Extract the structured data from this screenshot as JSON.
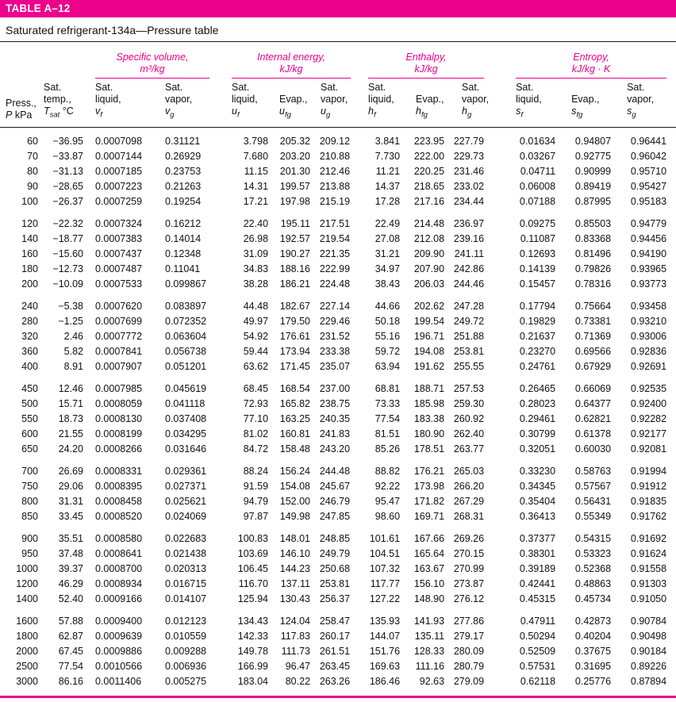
{
  "header": {
    "table_number": "TABLE A–12",
    "subtitle": "Saturated refrigerant-134a—Pressure table"
  },
  "colors": {
    "accent_magenta": "#ec008c",
    "rule_black": "#1a1a1a"
  },
  "table": {
    "column_groups": [
      {
        "id": "specific-volume",
        "label": "Specific volume,",
        "units": "m³/kg",
        "span": 2
      },
      {
        "id": "internal-energy",
        "label": "Internal energy,",
        "units": "kJ/kg",
        "span": 3
      },
      {
        "id": "enthalpy",
        "label": "Enthalpy,",
        "units": "kJ/kg",
        "span": 3
      },
      {
        "id": "entropy",
        "label": "Entropy,",
        "units": "kJ/kg · K",
        "span": 3
      }
    ],
    "columns": [
      {
        "id": "pressure",
        "lines": [
          "Press.,"
        ],
        "symbol": "P",
        "sub": "",
        "suffix": " kPa"
      },
      {
        "id": "sat-temp",
        "lines": [
          "Sat.",
          "temp.,"
        ],
        "symbol": "T",
        "sub": "sat",
        "suffix": " °C"
      },
      {
        "id": "vf",
        "lines": [
          "Sat.",
          "liquid,"
        ],
        "symbol": "v",
        "sub": "f",
        "suffix": ""
      },
      {
        "id": "vg",
        "lines": [
          "Sat.",
          "vapor,"
        ],
        "symbol": "v",
        "sub": "g",
        "suffix": ""
      },
      {
        "id": "uf",
        "lines": [
          "Sat.",
          "liquid,"
        ],
        "symbol": "u",
        "sub": "f",
        "suffix": ""
      },
      {
        "id": "ufg",
        "lines": [
          "Evap.,"
        ],
        "symbol": "u",
        "sub": "fg",
        "suffix": ""
      },
      {
        "id": "ug",
        "lines": [
          "Sat.",
          "vapor,"
        ],
        "symbol": "u",
        "sub": "g",
        "suffix": ""
      },
      {
        "id": "hf",
        "lines": [
          "Sat.",
          "liquid,"
        ],
        "symbol": "h",
        "sub": "f",
        "suffix": ""
      },
      {
        "id": "hfg",
        "lines": [
          "Evap.,"
        ],
        "symbol": "h",
        "sub": "fg",
        "suffix": ""
      },
      {
        "id": "hg",
        "lines": [
          "Sat.",
          "vapor,"
        ],
        "symbol": "h",
        "sub": "g",
        "suffix": ""
      },
      {
        "id": "sf",
        "lines": [
          "Sat.",
          "liquid,"
        ],
        "symbol": "s",
        "sub": "f",
        "suffix": ""
      },
      {
        "id": "sfg",
        "lines": [
          "Evap.,"
        ],
        "symbol": "s",
        "sub": "fg",
        "suffix": ""
      },
      {
        "id": "sg",
        "lines": [
          "Sat.",
          "vapor,"
        ],
        "symbol": "s",
        "sub": "g",
        "suffix": ""
      }
    ],
    "row_groups": [
      [
        [
          "60",
          "−36.95",
          "0.0007098",
          "0.31121",
          "3.798",
          "205.32",
          "209.12",
          "3.841",
          "223.95",
          "227.79",
          "0.01634",
          "0.94807",
          "0.96441"
        ],
        [
          "70",
          "−33.87",
          "0.0007144",
          "0.26929",
          "7.680",
          "203.20",
          "210.88",
          "7.730",
          "222.00",
          "229.73",
          "0.03267",
          "0.92775",
          "0.96042"
        ],
        [
          "80",
          "−31.13",
          "0.0007185",
          "0.23753",
          "11.15",
          "201.30",
          "212.46",
          "11.21",
          "220.25",
          "231.46",
          "0.04711",
          "0.90999",
          "0.95710"
        ],
        [
          "90",
          "−28.65",
          "0.0007223",
          "0.21263",
          "14.31",
          "199.57",
          "213.88",
          "14.37",
          "218.65",
          "233.02",
          "0.06008",
          "0.89419",
          "0.95427"
        ],
        [
          "100",
          "−26.37",
          "0.0007259",
          "0.19254",
          "17.21",
          "197.98",
          "215.19",
          "17.28",
          "217.16",
          "234.44",
          "0.07188",
          "0.87995",
          "0.95183"
        ]
      ],
      [
        [
          "120",
          "−22.32",
          "0.0007324",
          "0.16212",
          "22.40",
          "195.11",
          "217.51",
          "22.49",
          "214.48",
          "236.97",
          "0.09275",
          "0.85503",
          "0.94779"
        ],
        [
          "140",
          "−18.77",
          "0.0007383",
          "0.14014",
          "26.98",
          "192.57",
          "219.54",
          "27.08",
          "212.08",
          "239.16",
          "0.11087",
          "0.83368",
          "0.94456"
        ],
        [
          "160",
          "−15.60",
          "0.0007437",
          "0.12348",
          "31.09",
          "190.27",
          "221.35",
          "31.21",
          "209.90",
          "241.11",
          "0.12693",
          "0.81496",
          "0.94190"
        ],
        [
          "180",
          "−12.73",
          "0.0007487",
          "0.11041",
          "34.83",
          "188.16",
          "222.99",
          "34.97",
          "207.90",
          "242.86",
          "0.14139",
          "0.79826",
          "0.93965"
        ],
        [
          "200",
          "−10.09",
          "0.0007533",
          "0.099867",
          "38.28",
          "186.21",
          "224.48",
          "38.43",
          "206.03",
          "244.46",
          "0.15457",
          "0.78316",
          "0.93773"
        ]
      ],
      [
        [
          "240",
          "−5.38",
          "0.0007620",
          "0.083897",
          "44.48",
          "182.67",
          "227.14",
          "44.66",
          "202.62",
          "247.28",
          "0.17794",
          "0.75664",
          "0.93458"
        ],
        [
          "280",
          "−1.25",
          "0.0007699",
          "0.072352",
          "49.97",
          "179.50",
          "229.46",
          "50.18",
          "199.54",
          "249.72",
          "0.19829",
          "0.73381",
          "0.93210"
        ],
        [
          "320",
          "2.46",
          "0.0007772",
          "0.063604",
          "54.92",
          "176.61",
          "231.52",
          "55.16",
          "196.71",
          "251.88",
          "0.21637",
          "0.71369",
          "0.93006"
        ],
        [
          "360",
          "5.82",
          "0.0007841",
          "0.056738",
          "59.44",
          "173.94",
          "233.38",
          "59.72",
          "194.08",
          "253.81",
          "0.23270",
          "0.69566",
          "0.92836"
        ],
        [
          "400",
          "8.91",
          "0.0007907",
          "0.051201",
          "63.62",
          "171.45",
          "235.07",
          "63.94",
          "191.62",
          "255.55",
          "0.24761",
          "0.67929",
          "0.92691"
        ]
      ],
      [
        [
          "450",
          "12.46",
          "0.0007985",
          "0.045619",
          "68.45",
          "168.54",
          "237.00",
          "68.81",
          "188.71",
          "257.53",
          "0.26465",
          "0.66069",
          "0.92535"
        ],
        [
          "500",
          "15.71",
          "0.0008059",
          "0.041118",
          "72.93",
          "165.82",
          "238.75",
          "73.33",
          "185.98",
          "259.30",
          "0.28023",
          "0.64377",
          "0.92400"
        ],
        [
          "550",
          "18.73",
          "0.0008130",
          "0.037408",
          "77.10",
          "163.25",
          "240.35",
          "77.54",
          "183.38",
          "260.92",
          "0.29461",
          "0.62821",
          "0.92282"
        ],
        [
          "600",
          "21.55",
          "0.0008199",
          "0.034295",
          "81.02",
          "160.81",
          "241.83",
          "81.51",
          "180.90",
          "262.40",
          "0.30799",
          "0.61378",
          "0.92177"
        ],
        [
          "650",
          "24.20",
          "0.0008266",
          "0.031646",
          "84.72",
          "158.48",
          "243.20",
          "85.26",
          "178.51",
          "263.77",
          "0.32051",
          "0.60030",
          "0.92081"
        ]
      ],
      [
        [
          "700",
          "26.69",
          "0.0008331",
          "0.029361",
          "88.24",
          "156.24",
          "244.48",
          "88.82",
          "176.21",
          "265.03",
          "0.33230",
          "0.58763",
          "0.91994"
        ],
        [
          "750",
          "29.06",
          "0.0008395",
          "0.027371",
          "91.59",
          "154.08",
          "245.67",
          "92.22",
          "173.98",
          "266.20",
          "0.34345",
          "0.57567",
          "0.91912"
        ],
        [
          "800",
          "31.31",
          "0.0008458",
          "0.025621",
          "94.79",
          "152.00",
          "246.79",
          "95.47",
          "171.82",
          "267.29",
          "0.35404",
          "0.56431",
          "0.91835"
        ],
        [
          "850",
          "33.45",
          "0.0008520",
          "0.024069",
          "97.87",
          "149.98",
          "247.85",
          "98.60",
          "169.71",
          "268.31",
          "0.36413",
          "0.55349",
          "0.91762"
        ]
      ],
      [
        [
          "900",
          "35.51",
          "0.0008580",
          "0.022683",
          "100.83",
          "148.01",
          "248.85",
          "101.61",
          "167.66",
          "269.26",
          "0.37377",
          "0.54315",
          "0.91692"
        ],
        [
          "950",
          "37.48",
          "0.0008641",
          "0.021438",
          "103.69",
          "146.10",
          "249.79",
          "104.51",
          "165.64",
          "270.15",
          "0.38301",
          "0.53323",
          "0.91624"
        ],
        [
          "1000",
          "39.37",
          "0.0008700",
          "0.020313",
          "106.45",
          "144.23",
          "250.68",
          "107.32",
          "163.67",
          "270.99",
          "0.39189",
          "0.52368",
          "0.91558"
        ],
        [
          "1200",
          "46.29",
          "0.0008934",
          "0.016715",
          "116.70",
          "137.11",
          "253.81",
          "117.77",
          "156.10",
          "273.87",
          "0.42441",
          "0.48863",
          "0.91303"
        ],
        [
          "1400",
          "52.40",
          "0.0009166",
          "0.014107",
          "125.94",
          "130.43",
          "256.37",
          "127.22",
          "148.90",
          "276.12",
          "0.45315",
          "0.45734",
          "0.91050"
        ]
      ],
      [
        [
          "1600",
          "57.88",
          "0.0009400",
          "0.012123",
          "134.43",
          "124.04",
          "258.47",
          "135.93",
          "141.93",
          "277.86",
          "0.47911",
          "0.42873",
          "0.90784"
        ],
        [
          "1800",
          "62.87",
          "0.0009639",
          "0.010559",
          "142.33",
          "117.83",
          "260.17",
          "144.07",
          "135.11",
          "279.17",
          "0.50294",
          "0.40204",
          "0.90498"
        ],
        [
          "2000",
          "67.45",
          "0.0009886",
          "0.009288",
          "149.78",
          "111.73",
          "261.51",
          "151.76",
          "128.33",
          "280.09",
          "0.52509",
          "0.37675",
          "0.90184"
        ],
        [
          "2500",
          "77.54",
          "0.0010566",
          "0.006936",
          "166.99",
          "96.47",
          "263.45",
          "169.63",
          "111.16",
          "280.79",
          "0.57531",
          "0.31695",
          "0.89226"
        ],
        [
          "3000",
          "86.16",
          "0.0011406",
          "0.005275",
          "183.04",
          "80.22",
          "263.26",
          "186.46",
          "92.63",
          "279.09",
          "0.62118",
          "0.25776",
          "0.87894"
        ]
      ]
    ]
  }
}
